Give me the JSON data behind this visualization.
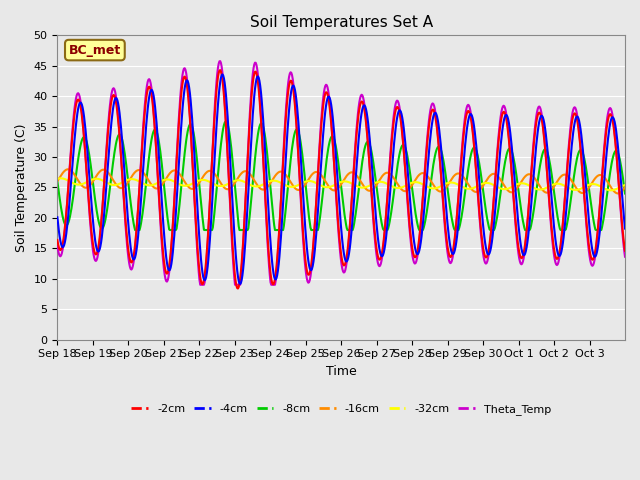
{
  "title": "Soil Temperatures Set A",
  "xlabel": "Time",
  "ylabel": "Soil Temperature (C)",
  "ylim": [
    0,
    50
  ],
  "yticks": [
    0,
    5,
    10,
    15,
    20,
    25,
    30,
    35,
    40,
    45,
    50
  ],
  "annotation": "BC_met",
  "annotation_color": "#8B0000",
  "annotation_bg": "#FFFF99",
  "bg_color": "#E8E8E8",
  "series": {
    "neg2cm": {
      "color": "#FF0000",
      "label": "-2cm",
      "lw": 1.5
    },
    "neg4cm": {
      "color": "#0000FF",
      "label": "-4cm",
      "lw": 1.5
    },
    "neg8cm": {
      "color": "#00CC00",
      "label": "-8cm",
      "lw": 1.5
    },
    "neg16cm": {
      "color": "#FF8C00",
      "label": "-16cm",
      "lw": 1.5
    },
    "neg32cm": {
      "color": "#FFFF00",
      "label": "-32cm",
      "lw": 1.5
    },
    "theta": {
      "color": "#CC00CC",
      "label": "Theta_Temp",
      "lw": 1.5
    }
  },
  "xtick_labels": [
    "Sep 18",
    "Sep 19",
    "Sep 20",
    "Sep 21",
    "Sep 22",
    "Sep 23",
    "Sep 24",
    "Sep 25",
    "Sep 26",
    "Sep 27",
    "Sep 28",
    "Sep 29",
    "Sep 30",
    "Oct 1",
    "Oct 2",
    "Oct 3"
  ],
  "n_days": 16,
  "legend_ncol": 6
}
